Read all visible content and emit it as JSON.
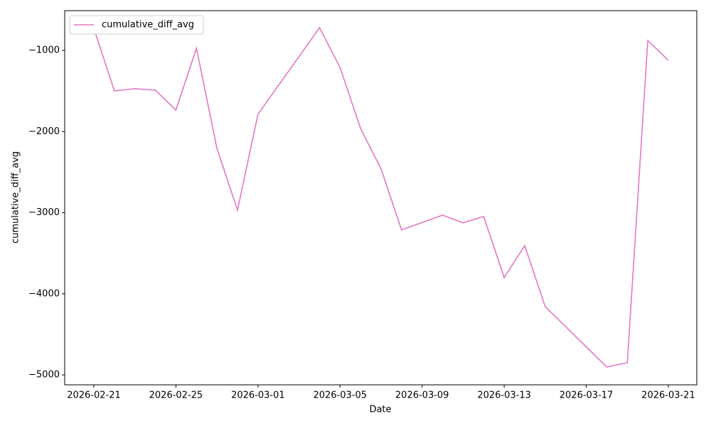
{
  "chart_data": {
    "type": "line",
    "xlabel": "Date",
    "ylabel": "cumulative_diff_avg",
    "x": [
      "2026-02-21",
      "2026-02-22",
      "2026-02-23",
      "2026-02-24",
      "2026-02-25",
      "2026-02-26",
      "2026-02-27",
      "2026-02-28",
      "2026-03-01",
      "2026-03-02",
      "2026-03-03",
      "2026-03-04",
      "2026-03-05",
      "2026-03-06",
      "2026-03-07",
      "2026-03-08",
      "2026-03-09",
      "2026-03-10",
      "2026-03-11",
      "2026-03-12",
      "2026-03-13",
      "2026-03-14",
      "2026-03-15",
      "2026-03-16",
      "2026-03-17",
      "2026-03-18",
      "2026-03-19",
      "2026-03-20",
      "2026-03-21"
    ],
    "series": [
      {
        "name": "cumulative_diff_avg",
        "color": "#e377c2",
        "values": [
          -730,
          -1499,
          -1472,
          -1490,
          -1735,
          -974,
          -2207,
          -2969,
          -1787,
          -1431,
          -1076,
          -720,
          -1210,
          -1962,
          -2461,
          -3213,
          -3121,
          -3030,
          -3126,
          -3047,
          -3800,
          -3406,
          -4158,
          -4406,
          -4654,
          -4902,
          -4850,
          -878,
          -1122
        ]
      }
    ],
    "xlim": [
      "2026-02-19T13:54:00",
      "2026-03-22T09:18:00"
    ],
    "xticks": [
      "2026-02-21",
      "2026-02-25",
      "2026-03-01",
      "2026-03-05",
      "2026-03-09",
      "2026-03-13",
      "2026-03-17",
      "2026-03-21"
    ],
    "ylim": [
      -5122,
      -510
    ],
    "yticks": [
      {
        "value": -5000,
        "label": "−5000"
      },
      {
        "value": -4000,
        "label": "−4000"
      },
      {
        "value": -3000,
        "label": "−3000"
      },
      {
        "value": -2000,
        "label": "−2000"
      },
      {
        "value": -1000,
        "label": "−1000"
      }
    ],
    "grid": false,
    "legend": "upper left"
  }
}
